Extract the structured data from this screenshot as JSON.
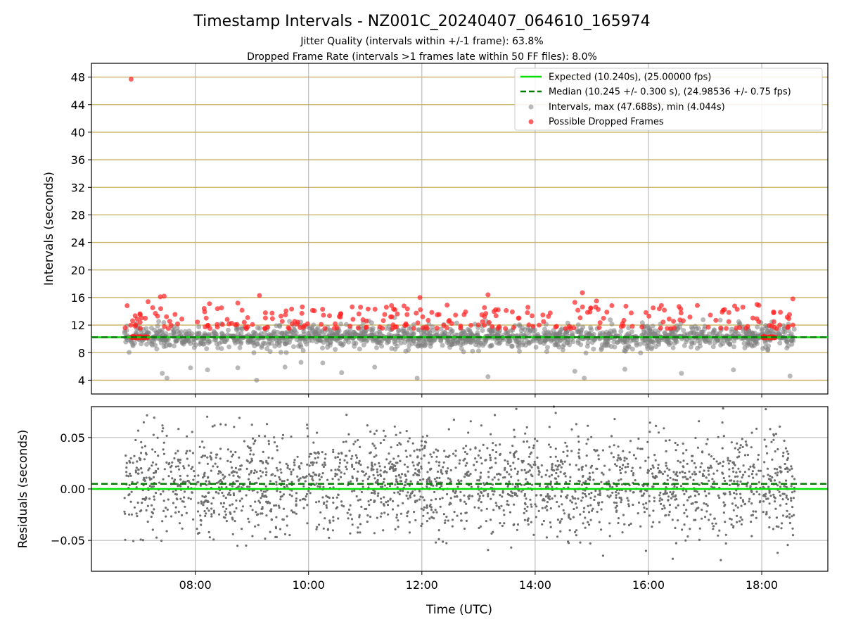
{
  "title": "Timestamp Intervals - NZ001C_20240407_064610_165974",
  "subtitle_1": "Jitter Quality (intervals within +/-1 frame): 63.8%",
  "subtitle_2": "Dropped Frame Rate (intervals >1 frames late within 50 FF files): 8.0%",
  "colors": {
    "expected": "#00e000",
    "median": "#007a00",
    "intervals": "#808080",
    "dropped": "#ff2020",
    "hgrid": "#c8b060",
    "vgrid": "#b0b0b0"
  },
  "chart_data": [
    {
      "type": "scatter",
      "xlabel": "",
      "ylabel": "Intervals (seconds)",
      "xlim": [
        "06:10",
        "19:10"
      ],
      "ylim": [
        2,
        50
      ],
      "yticks": [
        4,
        8,
        12,
        16,
        20,
        24,
        28,
        32,
        36,
        40,
        44,
        48
      ],
      "xticks": [
        "08:00",
        "10:00",
        "12:00",
        "14:00",
        "16:00",
        "18:00"
      ],
      "grid": true,
      "legend_position": "top-right",
      "legend": [
        "Expected (10.240s), (25.00000 fps)",
        "Median (10.245 +/- 0.300 s), (24.98536 +/- 0.75 fps)",
        "Intervals, max (47.688s), min (4.044s)",
        "Possible Dropped Frames"
      ],
      "reference_lines": {
        "expected": 10.24,
        "median": 10.245
      },
      "series": [
        {
          "name": "Intervals, max (47.688s), min (4.044s)",
          "distribution": {
            "x_start": "06:45",
            "x_end": "18:35",
            "center": 10.24,
            "max": 47.688,
            "min": 4.044
          },
          "points": [
            {
              "x": "07:25",
              "y": 5.0
            },
            {
              "x": "07:30",
              "y": 4.3
            },
            {
              "x": "07:55",
              "y": 5.8
            },
            {
              "x": "08:13",
              "y": 5.5
            },
            {
              "x": "08:45",
              "y": 5.8
            },
            {
              "x": "09:05",
              "y": 4.0
            },
            {
              "x": "09:35",
              "y": 5.9
            },
            {
              "x": "09:52",
              "y": 6.6
            },
            {
              "x": "10:15",
              "y": 6.5
            },
            {
              "x": "10:35",
              "y": 5.1
            },
            {
              "x": "11:10",
              "y": 5.9
            },
            {
              "x": "11:55",
              "y": 4.3
            },
            {
              "x": "13:10",
              "y": 4.5
            },
            {
              "x": "14:42",
              "y": 5.3
            },
            {
              "x": "14:52",
              "y": 4.3
            },
            {
              "x": "15:35",
              "y": 5.6
            },
            {
              "x": "16:35",
              "y": 5.0
            },
            {
              "x": "17:30",
              "y": 5.5
            },
            {
              "x": "18:30",
              "y": 4.6
            }
          ]
        },
        {
          "name": "Possible Dropped Frames",
          "cluster_start": {
            "x_from": "06:52",
            "x_to": "07:10",
            "y": 10.24
          },
          "cluster_end": {
            "x_from": "18:01",
            "x_to": "18:15",
            "y": 10.24
          },
          "points": [
            {
              "x": "06:52",
              "y": 47.7
            },
            {
              "x": "07:10",
              "y": 15.4
            },
            {
              "x": "07:23",
              "y": 16.1
            },
            {
              "x": "07:27",
              "y": 16.2
            },
            {
              "x": "08:15",
              "y": 15.1
            },
            {
              "x": "08:45",
              "y": 15.2
            },
            {
              "x": "09:08",
              "y": 16.3
            },
            {
              "x": "10:55",
              "y": 14.6
            },
            {
              "x": "11:58",
              "y": 16.0
            },
            {
              "x": "13:10",
              "y": 16.4
            },
            {
              "x": "14:42",
              "y": 15.3
            },
            {
              "x": "14:50",
              "y": 16.7
            },
            {
              "x": "15:05",
              "y": 15.5
            },
            {
              "x": "16:05",
              "y": 14.5
            },
            {
              "x": "17:55",
              "y": 15.0
            },
            {
              "x": "18:33",
              "y": 15.8
            }
          ]
        }
      ]
    },
    {
      "type": "scatter",
      "xlabel": "Time (UTC)",
      "ylabel": "Residuals (seconds)",
      "xlim": [
        "06:10",
        "19:10"
      ],
      "ylim": [
        -0.08,
        0.08
      ],
      "yticks": [
        -0.05,
        0.0,
        0.05
      ],
      "ytick_labels": [
        "−0.05",
        "0.00",
        "0.05"
      ],
      "xticks": [
        "08:00",
        "10:00",
        "12:00",
        "14:00",
        "16:00",
        "18:00"
      ],
      "grid": true,
      "reference_lines": {
        "expected": 0.0,
        "median": 0.005
      },
      "series": [
        {
          "name": "",
          "distribution": {
            "x_start": "06:45",
            "x_end": "18:35",
            "center": 0.005,
            "range": [
              -0.08,
              0.08
            ]
          }
        }
      ]
    }
  ]
}
